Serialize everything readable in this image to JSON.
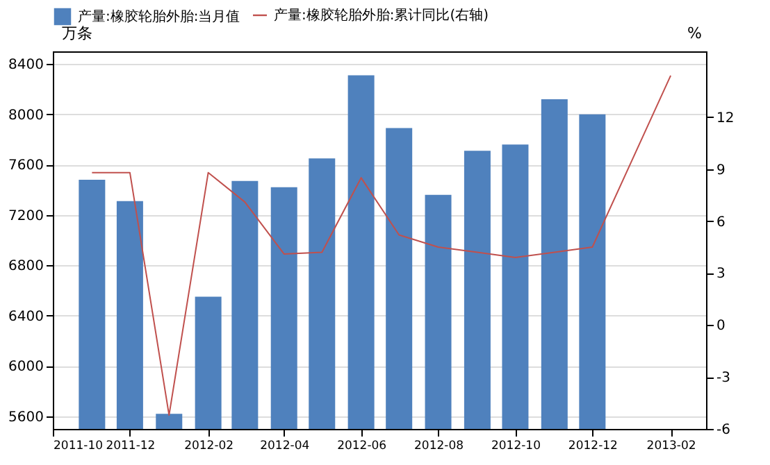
{
  "chart_data": {
    "type": "bar",
    "x": [
      "2011-11",
      "2011-12",
      "2012-01",
      "2012-02",
      "2012-03",
      "2012-04",
      "2012-05",
      "2012-06",
      "2012-07",
      "2012-08",
      "2012-09",
      "2012-10",
      "2012-11",
      "2012-12"
    ],
    "series": [
      {
        "name": "产量:橡胶轮胎外胎:当月值",
        "color": "#4f81bd",
        "values": [
          7480,
          7310,
          5620,
          6550,
          7470,
          7420,
          7650,
          8310,
          7890,
          7360,
          7710,
          7760,
          8120,
          8000
        ]
      },
      {
        "name": "产量:橡胶轮胎外胎:累计同比(右轴)",
        "type": "line",
        "axis": "y2",
        "color": "#c0504d",
        "x": [
          "2011-11",
          "2011-12",
          "2012-01",
          "2012-02",
          "2012-03",
          "2012-04",
          "2012-05",
          "2012-06",
          "2012-07",
          "2012-08",
          "2012-09",
          "2012-10",
          "2012-11",
          "2012-12",
          "2013-02"
        ],
        "values": [
          8.8,
          8.8,
          -5.2,
          8.8,
          7.1,
          4.1,
          4.2,
          8.5,
          5.2,
          4.5,
          4.2,
          3.9,
          4.2,
          4.5,
          14.4
        ]
      }
    ],
    "ylabel": "万条",
    "y2label": "%",
    "xlim": [
      "2011-10",
      "2013-03"
    ],
    "xticks": [
      "2011-10",
      "2011-12",
      "2012-02",
      "2012-04",
      "2012-06",
      "2012-08",
      "2012-10",
      "2012-12",
      "2013-02"
    ],
    "ylim": [
      5500,
      8500
    ],
    "yticks": [
      5600,
      6000,
      6400,
      6800,
      7200,
      7600,
      8000,
      8400
    ],
    "y2lim": [
      -6,
      15.8
    ],
    "y2ticks": [
      -6,
      -3,
      0,
      3,
      6,
      9,
      12
    ],
    "grid": "y",
    "legend": "top"
  }
}
